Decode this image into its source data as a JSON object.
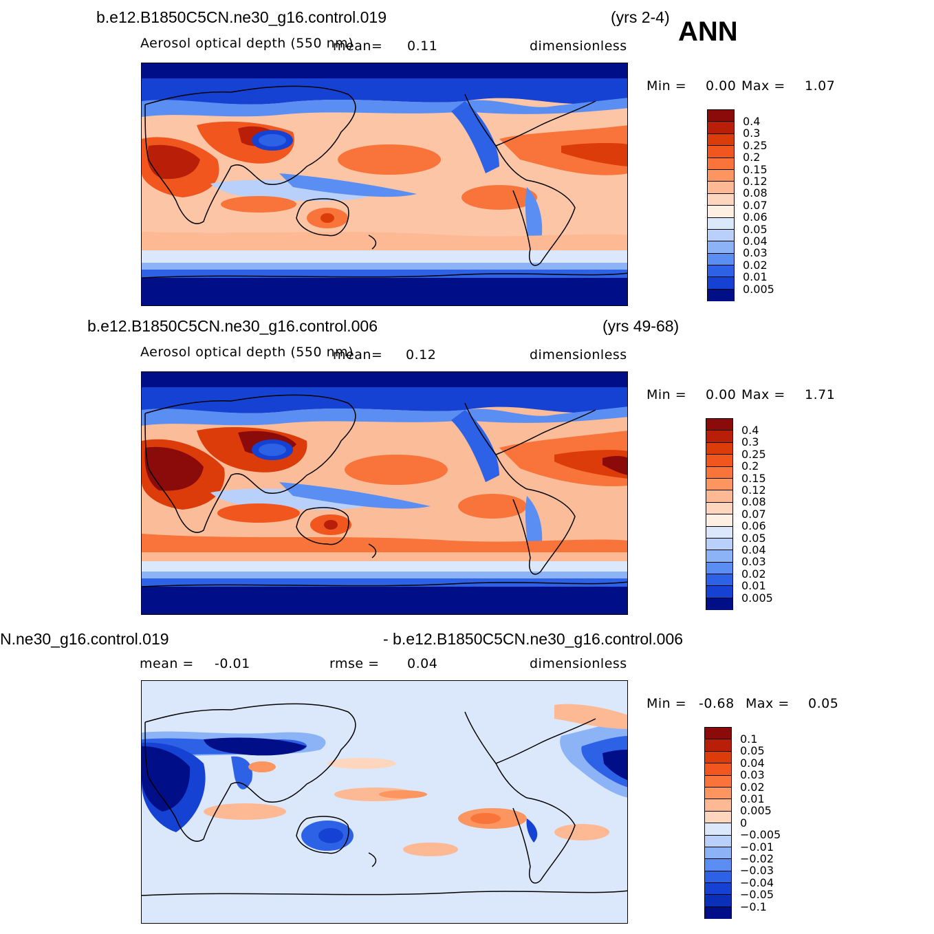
{
  "season": "ANN",
  "panels": [
    {
      "case": "b.e12.B1850C5CN.ne30_g16.control.019",
      "years": "(yrs 2-4)",
      "variable": "Aerosol optical depth (550 nm)",
      "mean_label": "mean=",
      "mean": "0.11",
      "units": "dimensionless",
      "min_label": "Min =",
      "min": "0.00",
      "max_label": "Max =",
      "max": "1.07"
    },
    {
      "case": "b.e12.B1850C5CN.ne30_g16.control.006",
      "years": "(yrs 49-68)",
      "variable": "Aerosol optical depth (550 nm)",
      "mean_label": "mean=",
      "mean": "0.12",
      "units": "dimensionless",
      "min_label": "Min =",
      "min": "0.00",
      "max_label": "Max =",
      "max": "1.71"
    },
    {
      "case_left": "N.ne30_g16.control.019",
      "case_right": "- b.e12.B1850C5CN.ne30_g16.control.006",
      "mean_label": "mean =",
      "mean": "-0.01",
      "rmse_label": "rmse =",
      "rmse": "0.04",
      "units": "dimensionless",
      "min_label": "Min =",
      "min": "-0.68",
      "max_label": "Max =",
      "max": "0.05"
    }
  ],
  "legend_abs": {
    "labels": [
      "0.4",
      "0.3",
      "0.25",
      "0.2",
      "0.15",
      "0.12",
      "0.08",
      "0.07",
      "0.06",
      "0.05",
      "0.04",
      "0.03",
      "0.02",
      "0.01",
      "0.005"
    ],
    "colors": [
      "#8b0a0a",
      "#b81e08",
      "#dc3b0a",
      "#f0561e",
      "#f8743a",
      "#fc9560",
      "#fdb894",
      "#fdd6bd",
      "#fdf0e3",
      "#dbe8fb",
      "#b9d1fa",
      "#8db3f7",
      "#5b8ef2",
      "#2e62e6",
      "#1542d2",
      "#000e87"
    ]
  },
  "legend_diff": {
    "labels": [
      "0.1",
      "0.05",
      "0.04",
      "0.03",
      "0.02",
      "0.01",
      "0.005",
      "0",
      "−0.005",
      "−0.01",
      "−0.02",
      "−0.03",
      "−0.04",
      "−0.05",
      "−0.1"
    ],
    "colors": [
      "#8b0a0a",
      "#b81e08",
      "#dc3b0a",
      "#f0561e",
      "#f8743a",
      "#fc9560",
      "#fdb894",
      "#fdd6bd",
      "#dbe8fb",
      "#b9d1fa",
      "#8db3f7",
      "#5b8ef2",
      "#2e62e6",
      "#1542d2",
      "#0a2fb8",
      "#000e87"
    ]
  }
}
